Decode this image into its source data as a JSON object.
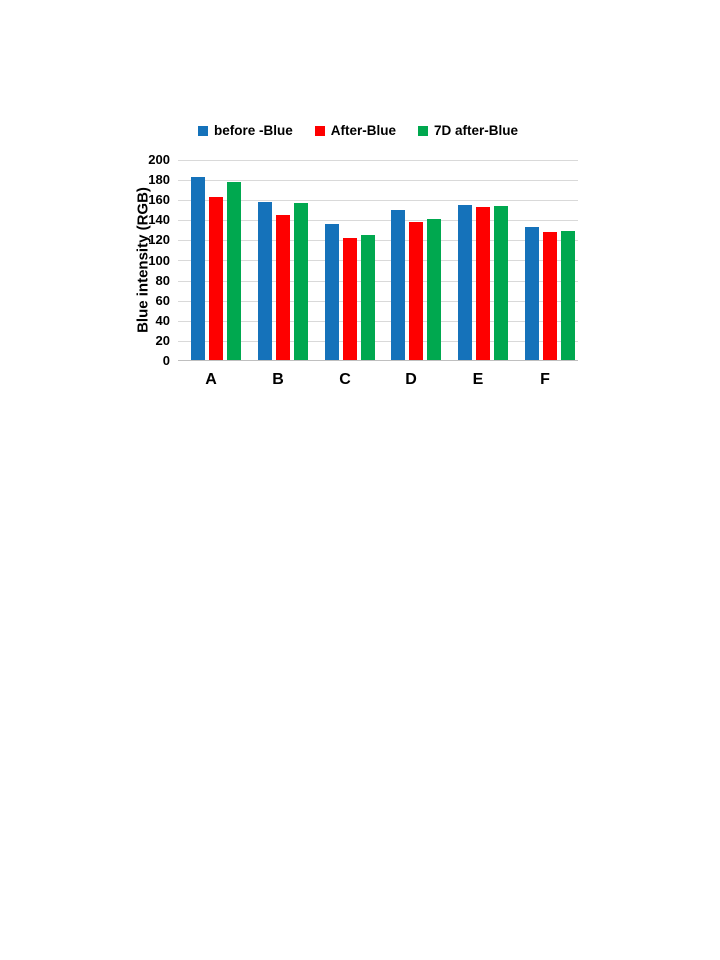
{
  "page": {
    "background": "#FFFFFF"
  },
  "chart_data": {
    "type": "bar",
    "title": "",
    "xlabel": "",
    "ylabel": "Blue intensity (RGB)",
    "categories": [
      "A",
      "B",
      "C",
      "D",
      "E",
      "F"
    ],
    "series": [
      {
        "name": "before -Blue",
        "color": "#1572BA",
        "values": [
          182,
          157,
          135,
          149,
          154,
          132
        ]
      },
      {
        "name": "After-Blue",
        "color": "#FE0000",
        "values": [
          162,
          144,
          121,
          137,
          152,
          127
        ]
      },
      {
        "name": "7D after-Blue",
        "color": "#00A84F",
        "values": [
          177,
          156,
          124,
          140,
          153,
          128
        ]
      }
    ],
    "ylim": [
      0,
      200
    ],
    "ytick_step": 20,
    "grid": true,
    "legend_position": "top",
    "gridline_color": "#D9D9D9",
    "axis_line_color": "#BFBFBF",
    "text_color": "#000000"
  }
}
